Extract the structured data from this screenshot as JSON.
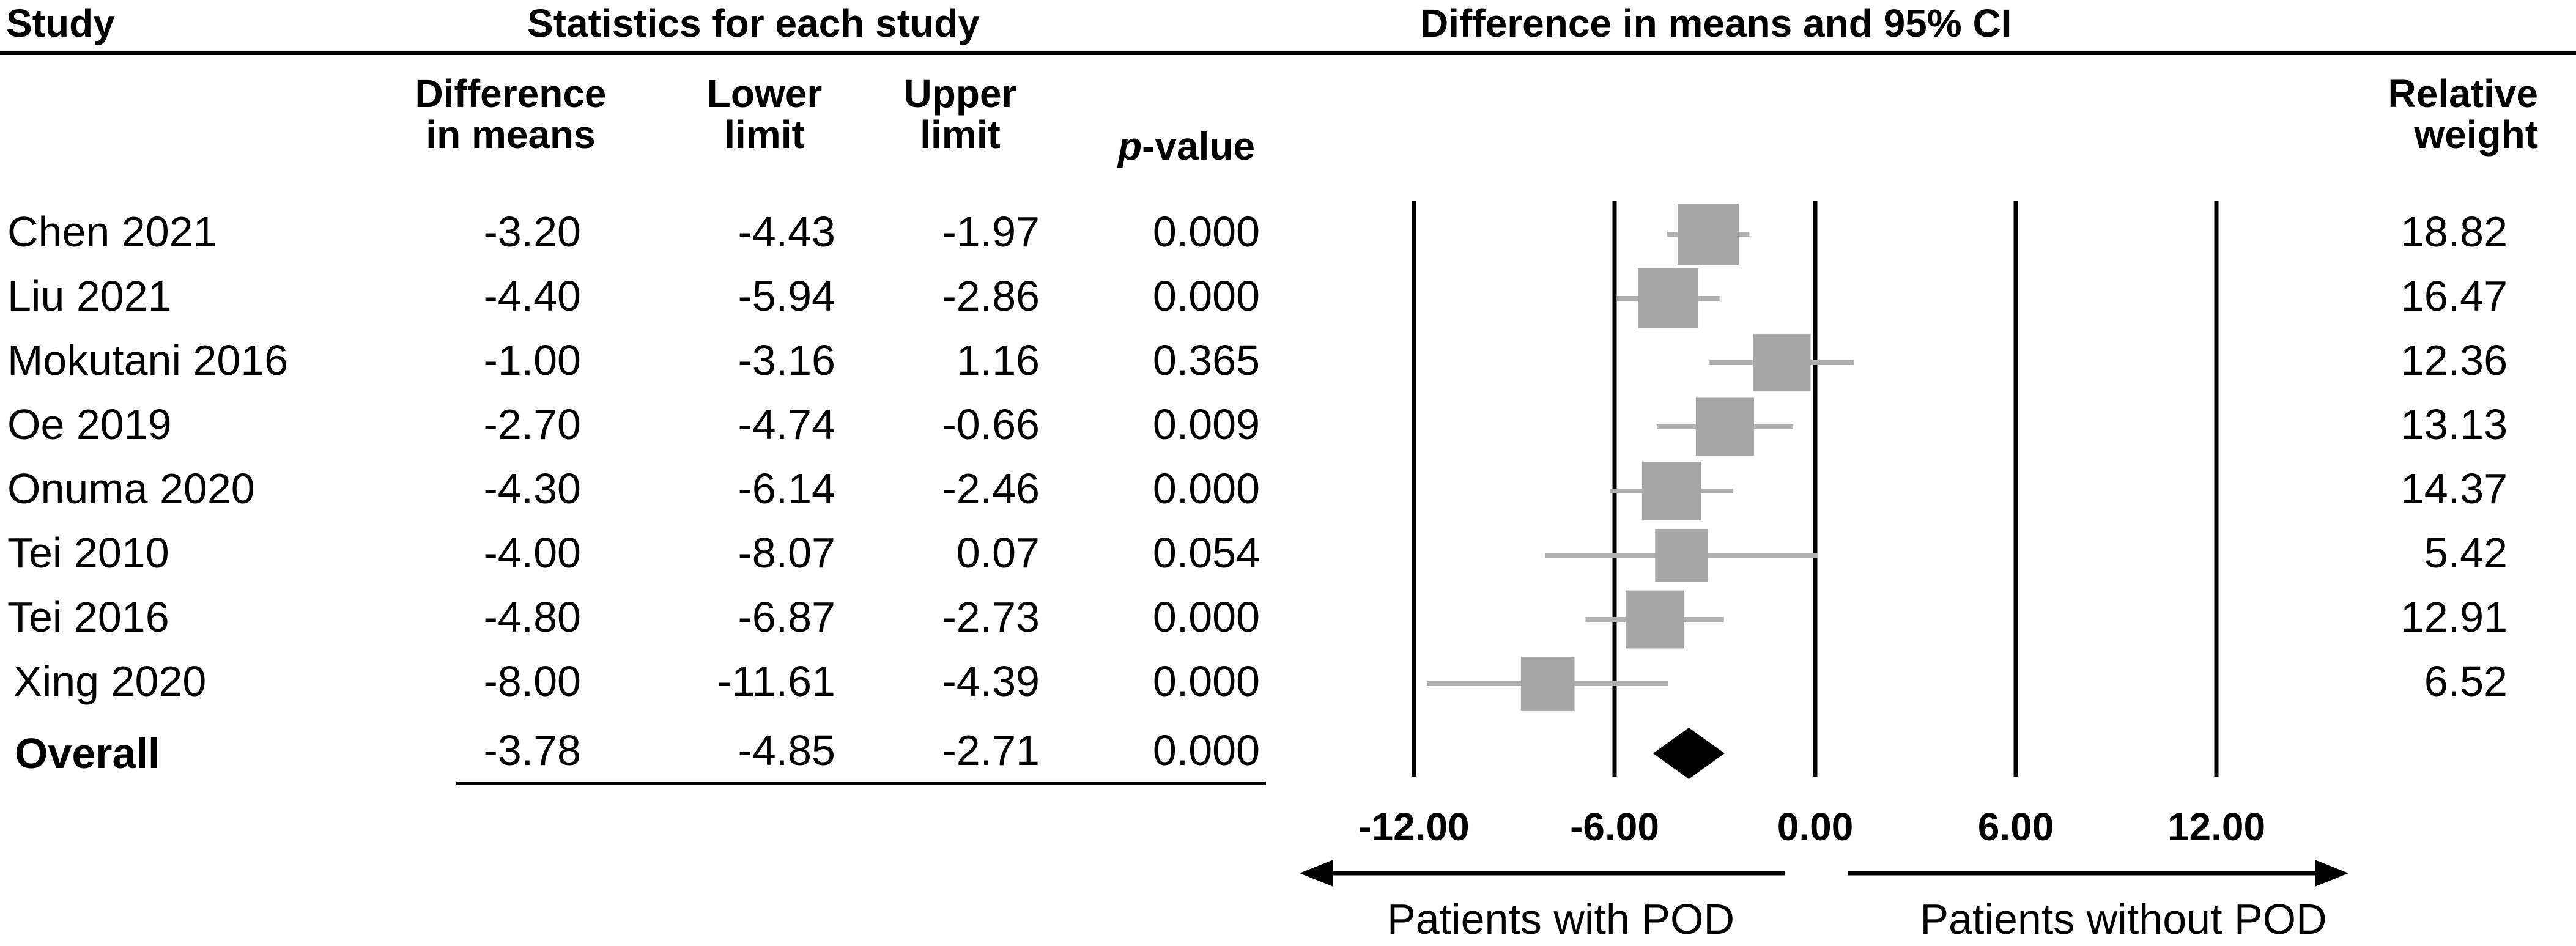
{
  "headers": {
    "study": "Study",
    "stats": "Statistics for each study",
    "plot": "Difference in means and 95% CI",
    "diff_line1": "Difference",
    "diff_line2": "in means",
    "lower_line1": "Lower",
    "lower_line2": "limit",
    "upper_line1": "Upper",
    "upper_line2": "limit",
    "p_italic": "p",
    "p_rest": "-value",
    "weight_line1": "Relative",
    "weight_line2": "weight"
  },
  "studies": [
    {
      "name": "Chen 2021",
      "diff": "-3.20",
      "lower": "-4.43",
      "upper": "-1.97",
      "p": "0.000",
      "weight": "18.82"
    },
    {
      "name": "Liu 2021",
      "diff": "-4.40",
      "lower": "-5.94",
      "upper": "-2.86",
      "p": "0.000",
      "weight": "16.47"
    },
    {
      "name": "Mokutani 2016",
      "diff": "-1.00",
      "lower": "-3.16",
      "upper": "1.16",
      "p": "0.365",
      "weight": "12.36"
    },
    {
      "name": "Oe 2019",
      "diff": "-2.70",
      "lower": "-4.74",
      "upper": "-0.66",
      "p": "0.009",
      "weight": "13.13"
    },
    {
      "name": "Onuma 2020",
      "diff": "-4.30",
      "lower": "-6.14",
      "upper": "-2.46",
      "p": "0.000",
      "weight": "14.37"
    },
    {
      "name": "Tei 2010",
      "diff": "-4.00",
      "lower": "-8.07",
      "upper": "0.07",
      "p": "0.054",
      "weight": "5.42"
    },
    {
      "name": "Tei 2016",
      "diff": "-4.80",
      "lower": "-6.87",
      "upper": "-2.73",
      "p": "0.000",
      "weight": "12.91"
    },
    {
      "name": "Xing 2020",
      "diff": "-8.00",
      "lower": "-11.61",
      "upper": "-4.39",
      "p": "0.000",
      "weight": "6.52"
    }
  ],
  "overall": {
    "name": "Overall",
    "diff": "-3.78",
    "lower": "-4.85",
    "upper": "-2.71",
    "p": "0.000"
  },
  "axis": {
    "ticks": [
      "-12.00",
      "-6.00",
      "0.00",
      "6.00",
      "12.00"
    ],
    "left_label": "Patients with POD",
    "right_label": "Patients without POD"
  },
  "chart_data": {
    "type": "forest",
    "title": "Difference in means and 95% CI",
    "xlim": [
      -15.0,
      15.0
    ],
    "gridlines": [
      -12,
      -6,
      0,
      6,
      12
    ],
    "tick_values": [
      -12,
      -6,
      0,
      6,
      12
    ],
    "tick_labels": [
      "-12.00",
      "-6.00",
      "0.00",
      "6.00",
      "12.00"
    ],
    "xlabel_left": "Patients with POD",
    "xlabel_right": "Patients without POD",
    "series": [
      {
        "name": "Chen 2021",
        "estimate": -3.2,
        "lower": -4.43,
        "upper": -1.97,
        "weight": 18.82
      },
      {
        "name": "Liu 2021",
        "estimate": -4.4,
        "lower": -5.94,
        "upper": -2.86,
        "weight": 16.47
      },
      {
        "name": "Mokutani 2016",
        "estimate": -1.0,
        "lower": -3.16,
        "upper": 1.16,
        "weight": 12.36
      },
      {
        "name": "Oe 2019",
        "estimate": -2.7,
        "lower": -4.74,
        "upper": -0.66,
        "weight": 13.13
      },
      {
        "name": "Onuma 2020",
        "estimate": -4.3,
        "lower": -6.14,
        "upper": -2.46,
        "weight": 14.37
      },
      {
        "name": "Tei 2010",
        "estimate": -4.0,
        "lower": -8.07,
        "upper": 0.07,
        "weight": 5.42
      },
      {
        "name": "Tei 2016",
        "estimate": -4.8,
        "lower": -6.87,
        "upper": -2.73,
        "weight": 12.91
      },
      {
        "name": "Xing 2020",
        "estimate": -8.0,
        "lower": -11.61,
        "upper": -4.39,
        "weight": 6.52
      }
    ],
    "overall": {
      "name": "Overall",
      "estimate": -3.78,
      "lower": -4.85,
      "upper": -2.71
    },
    "colors": {
      "study_marker": "#a6a6a6",
      "ci_line": "#b0b0b0",
      "overall_marker": "#000000",
      "gridline": "#000000"
    }
  }
}
